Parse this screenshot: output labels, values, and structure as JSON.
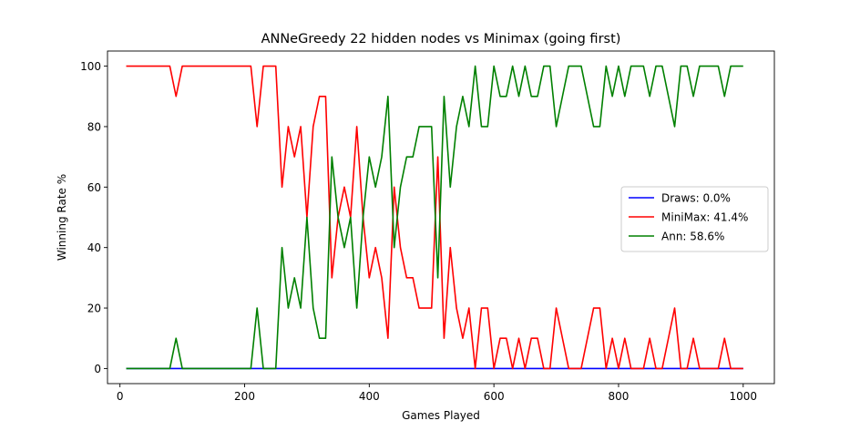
{
  "chart_data": {
    "type": "line",
    "title": "ANNeGreedy 22 hidden nodes vs Minimax (going first)",
    "xlabel": "Games Played",
    "ylabel": "Winning Rate %",
    "xlim": [
      -20,
      1050
    ],
    "ylim": [
      -5,
      105
    ],
    "xticks": [
      0,
      200,
      400,
      600,
      800,
      1000
    ],
    "yticks": [
      0,
      20,
      40,
      60,
      80,
      100
    ],
    "legend_position": "center-right",
    "grid": false,
    "x": [
      10,
      20,
      30,
      40,
      50,
      60,
      70,
      80,
      90,
      100,
      110,
      120,
      130,
      140,
      150,
      160,
      170,
      180,
      190,
      200,
      210,
      220,
      230,
      240,
      250,
      260,
      270,
      280,
      290,
      300,
      310,
      320,
      330,
      340,
      350,
      360,
      370,
      380,
      390,
      400,
      410,
      420,
      430,
      440,
      450,
      460,
      470,
      480,
      490,
      500,
      510,
      520,
      530,
      540,
      550,
      560,
      570,
      580,
      590,
      600,
      610,
      620,
      630,
      640,
      650,
      660,
      670,
      680,
      690,
      700,
      710,
      720,
      730,
      740,
      750,
      760,
      770,
      780,
      790,
      800,
      810,
      820,
      830,
      840,
      850,
      860,
      870,
      880,
      890,
      900,
      910,
      920,
      930,
      940,
      950,
      960,
      970,
      980,
      990,
      1000
    ],
    "series": [
      {
        "name": "Draws: 0.0%",
        "color": "#0000ff",
        "values": [
          0,
          0,
          0,
          0,
          0,
          0,
          0,
          0,
          0,
          0,
          0,
          0,
          0,
          0,
          0,
          0,
          0,
          0,
          0,
          0,
          0,
          0,
          0,
          0,
          0,
          0,
          0,
          0,
          0,
          0,
          0,
          0,
          0,
          0,
          0,
          0,
          0,
          0,
          0,
          0,
          0,
          0,
          0,
          0,
          0,
          0,
          0,
          0,
          0,
          0,
          0,
          0,
          0,
          0,
          0,
          0,
          0,
          0,
          0,
          0,
          0,
          0,
          0,
          0,
          0,
          0,
          0,
          0,
          0,
          0,
          0,
          0,
          0,
          0,
          0,
          0,
          0,
          0,
          0,
          0,
          0,
          0,
          0,
          0,
          0,
          0,
          0,
          0,
          0,
          0,
          0,
          0,
          0,
          0,
          0,
          0,
          0,
          0,
          0,
          0
        ]
      },
      {
        "name": "MiniMax: 41.4%",
        "color": "#ff0000",
        "values": [
          100,
          100,
          100,
          100,
          100,
          100,
          100,
          100,
          90,
          100,
          100,
          100,
          100,
          100,
          100,
          100,
          100,
          100,
          100,
          100,
          100,
          80,
          100,
          100,
          100,
          60,
          80,
          70,
          80,
          50,
          80,
          90,
          90,
          30,
          50,
          60,
          50,
          80,
          50,
          30,
          40,
          30,
          10,
          60,
          40,
          30,
          30,
          20,
          20,
          20,
          70,
          10,
          40,
          20,
          10,
          20,
          0,
          20,
          20,
          0,
          10,
          10,
          0,
          10,
          0,
          10,
          10,
          0,
          0,
          20,
          10,
          0,
          0,
          0,
          10,
          20,
          20,
          0,
          10,
          0,
          10,
          0,
          0,
          0,
          10,
          0,
          0,
          10,
          20,
          0,
          0,
          10,
          0,
          0,
          0,
          0,
          10,
          0,
          0,
          0
        ]
      },
      {
        "name": "Ann: 58.6%",
        "color": "#008000",
        "values": [
          0,
          0,
          0,
          0,
          0,
          0,
          0,
          0,
          10,
          0,
          0,
          0,
          0,
          0,
          0,
          0,
          0,
          0,
          0,
          0,
          0,
          20,
          0,
          0,
          0,
          40,
          20,
          30,
          20,
          50,
          20,
          10,
          10,
          70,
          50,
          40,
          50,
          20,
          50,
          70,
          60,
          70,
          90,
          40,
          60,
          70,
          70,
          80,
          80,
          80,
          30,
          90,
          60,
          80,
          90,
          80,
          100,
          80,
          80,
          100,
          90,
          90,
          100,
          90,
          100,
          90,
          90,
          100,
          100,
          80,
          90,
          100,
          100,
          100,
          90,
          80,
          80,
          100,
          90,
          100,
          90,
          100,
          100,
          100,
          90,
          100,
          100,
          90,
          80,
          100,
          100,
          90,
          100,
          100,
          100,
          100,
          90,
          100,
          100,
          100
        ]
      }
    ]
  }
}
